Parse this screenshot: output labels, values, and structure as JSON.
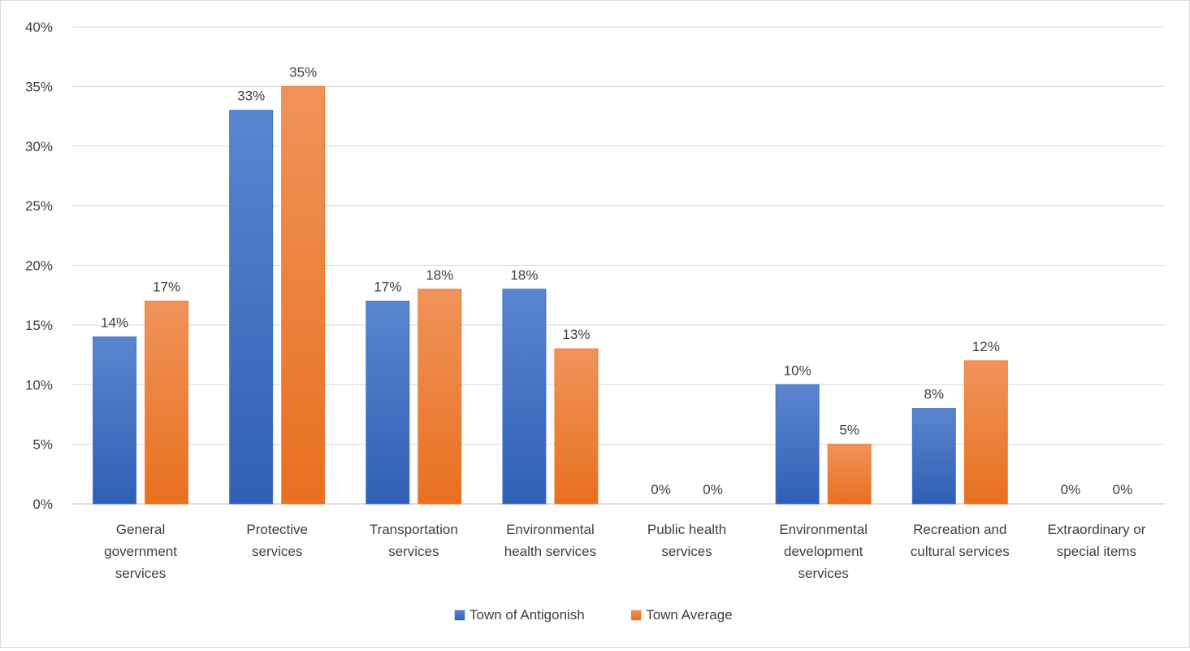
{
  "chart_data": {
    "type": "bar",
    "categories": [
      [
        "General",
        "government",
        "services"
      ],
      [
        "Protective",
        "services"
      ],
      [
        "Transportation",
        "services"
      ],
      [
        "Environmental",
        "health services"
      ],
      [
        "Public health",
        "services"
      ],
      [
        "Environmental",
        "development",
        "services"
      ],
      [
        "Recreation and",
        "cultural services"
      ],
      [
        "Extraordinary or",
        "special items"
      ]
    ],
    "series": [
      {
        "name": "Town of Antigonish",
        "color": "#4472c4",
        "values": [
          14,
          33,
          17,
          18,
          0,
          10,
          8,
          0
        ]
      },
      {
        "name": "Town Average",
        "color": "#ed7d31",
        "values": [
          17,
          35,
          18,
          13,
          0,
          5,
          12,
          0
        ]
      }
    ],
    "ylim": [
      0,
      40
    ],
    "ytick_step": 5,
    "value_suffix": "%",
    "grid": true,
    "legend_position": "bottom"
  }
}
